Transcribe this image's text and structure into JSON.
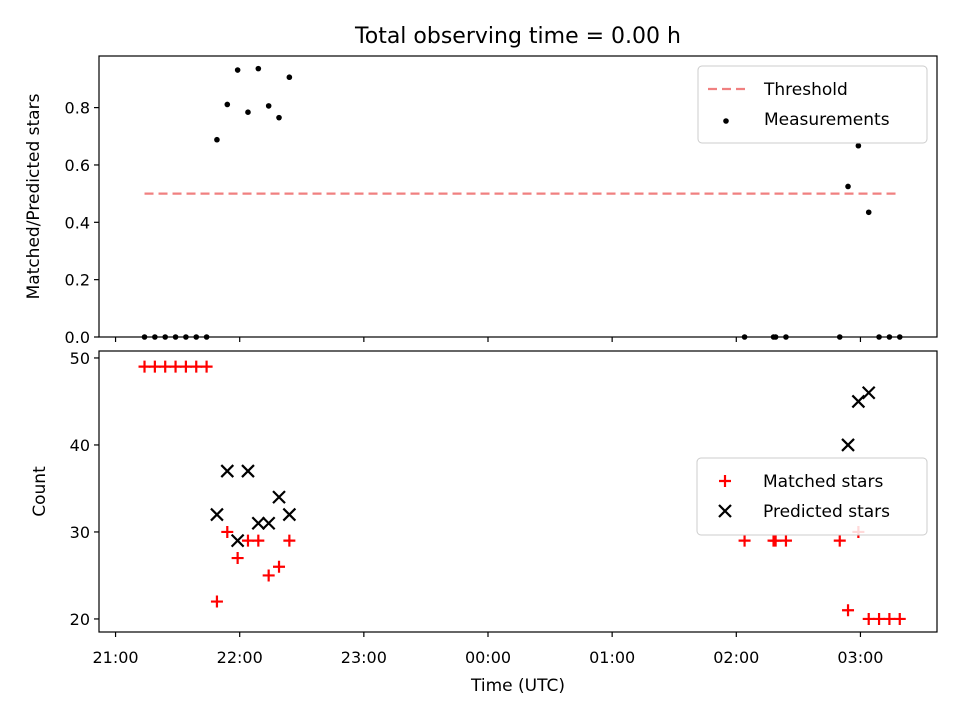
{
  "chart_data": [
    {
      "type": "scatter",
      "title": "Total observing time = 0.00 h",
      "ylabel": "Matched/Predicted stars",
      "xlabel": "",
      "ylim": [
        0,
        0.98
      ],
      "yticks": [
        0.0,
        0.2,
        0.4,
        0.6,
        0.8
      ],
      "yticklabels": [
        "0.0",
        "0.2",
        "0.4",
        "0.6",
        "0.8"
      ],
      "xlim": [
        "20:52",
        "03:37"
      ],
      "xticks": [
        "21:00",
        "22:00",
        "23:00",
        "00:00",
        "01:00",
        "02:00",
        "03:00"
      ],
      "show_xticklabels": false,
      "legend_position": "upper right",
      "threshold": {
        "name": "Threshold",
        "value": 0.5,
        "x_start": "21:14",
        "x_end": "03:17",
        "color": "#f08080",
        "style": "dashed"
      },
      "series": [
        {
          "name": "Measurements",
          "marker": "dot",
          "color": "#000000",
          "x": [
            "21:14",
            "21:19",
            "21:24",
            "21:29",
            "21:34",
            "21:39",
            "21:44",
            "21:49",
            "21:54",
            "21:59",
            "22:04",
            "22:09",
            "22:14",
            "22:19",
            "22:24",
            "02:04",
            "02:18",
            "02:19",
            "02:24",
            "02:50",
            "02:54",
            "02:59",
            "03:04",
            "03:09",
            "03:14",
            "03:19"
          ],
          "y": [
            0,
            0,
            0,
            0,
            0,
            0,
            0,
            0.688,
            0.811,
            0.931,
            0.784,
            0.936,
            0.806,
            0.765,
            0.906,
            0,
            0,
            0,
            0,
            0,
            0.525,
            0.667,
            0.435,
            0,
            0,
            0
          ]
        }
      ]
    },
    {
      "type": "scatter",
      "title": "",
      "ylabel": "Count",
      "xlabel": "Time (UTC)",
      "ylim": [
        18.5,
        50.8
      ],
      "yticks": [
        20,
        30,
        40,
        50
      ],
      "yticklabels": [
        "20",
        "30",
        "40",
        "50"
      ],
      "xlim": [
        "20:52",
        "03:37"
      ],
      "xticks": [
        "21:00",
        "22:00",
        "23:00",
        "00:00",
        "01:00",
        "02:00",
        "03:00"
      ],
      "xticklabels": [
        "21:00",
        "22:00",
        "23:00",
        "00:00",
        "01:00",
        "02:00",
        "03:00"
      ],
      "legend_position": "center right",
      "series": [
        {
          "name": "Matched stars",
          "marker": "plus",
          "color": "#ff0000",
          "x": [
            "21:14",
            "21:19",
            "21:24",
            "21:29",
            "21:34",
            "21:39",
            "21:44",
            "21:49",
            "21:54",
            "21:59",
            "22:04",
            "22:09",
            "22:14",
            "22:19",
            "22:24",
            "02:04",
            "02:18",
            "02:19",
            "02:24",
            "02:50",
            "02:54",
            "02:59",
            "03:04",
            "03:09",
            "03:14",
            "03:19"
          ],
          "y": [
            49,
            49,
            49,
            49,
            49,
            49,
            49,
            22,
            30,
            27,
            29,
            29,
            25,
            26,
            29,
            29,
            29,
            29,
            29,
            29,
            21,
            30,
            20,
            20,
            20,
            20
          ]
        },
        {
          "name": "Predicted stars",
          "marker": "x",
          "color": "#000000",
          "x": [
            "21:49",
            "21:54",
            "21:59",
            "22:04",
            "22:09",
            "22:14",
            "22:19",
            "22:24",
            "02:54",
            "02:59",
            "03:04"
          ],
          "y": [
            32,
            37,
            29,
            37,
            31,
            31,
            34,
            32,
            40,
            45,
            46
          ]
        }
      ]
    }
  ]
}
